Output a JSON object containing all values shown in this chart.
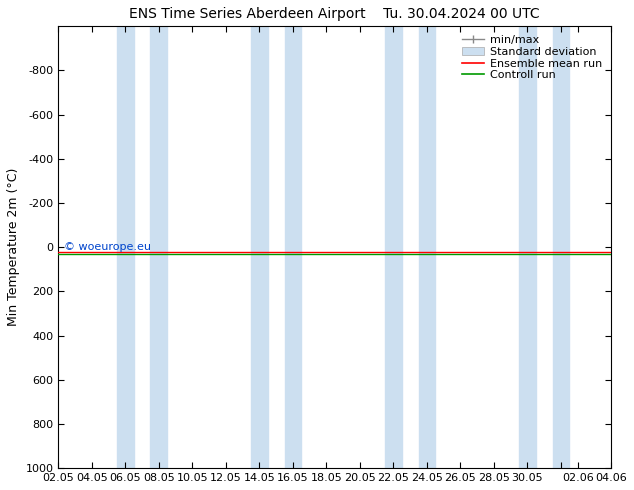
{
  "title": "ENS Time Series Aberdeen Airport",
  "title2": "Tu. 30.04.2024 00 UTC",
  "ylabel": "Min Temperature 2m (°C)",
  "ylim_top": -1000,
  "ylim_bottom": 1000,
  "yticks": [
    -800,
    -600,
    -400,
    -200,
    0,
    200,
    400,
    600,
    800,
    1000
  ],
  "xtick_labels": [
    "02.05",
    "04.05",
    "06.05",
    "08.05",
    "10.05",
    "12.05",
    "14.05",
    "16.05",
    "18.05",
    "20.05",
    "22.05",
    "24.05",
    "26.05",
    "28.05",
    "30.05",
    "",
    "02.06",
    "04.06"
  ],
  "xtick_positions": [
    0,
    2,
    4,
    6,
    8,
    10,
    12,
    14,
    16,
    18,
    20,
    22,
    24,
    26,
    28,
    30,
    31,
    33
  ],
  "xlim": [
    0,
    33
  ],
  "watermark": "© woeurope.eu",
  "bg_color": "#ffffff",
  "plot_bg_color": "#ffffff",
  "band_color": "#ccdff0",
  "band_pairs": [
    [
      3.5,
      4.5
    ],
    [
      5.5,
      6.5
    ],
    [
      11.5,
      12.5
    ],
    [
      13.5,
      14.5
    ],
    [
      19.5,
      20.5
    ],
    [
      21.5,
      22.5
    ],
    [
      27.5,
      28.5
    ],
    [
      29.5,
      30.5
    ]
  ],
  "ensemble_mean_y": 20,
  "control_run_y": 30,
  "ensemble_mean_color": "#ff0000",
  "control_run_color": "#009900",
  "legend_items": [
    "min/max",
    "Standard deviation",
    "Ensemble mean run",
    "Controll run"
  ],
  "title_fontsize": 10,
  "ylabel_fontsize": 9,
  "tick_fontsize": 8,
  "legend_fontsize": 8
}
